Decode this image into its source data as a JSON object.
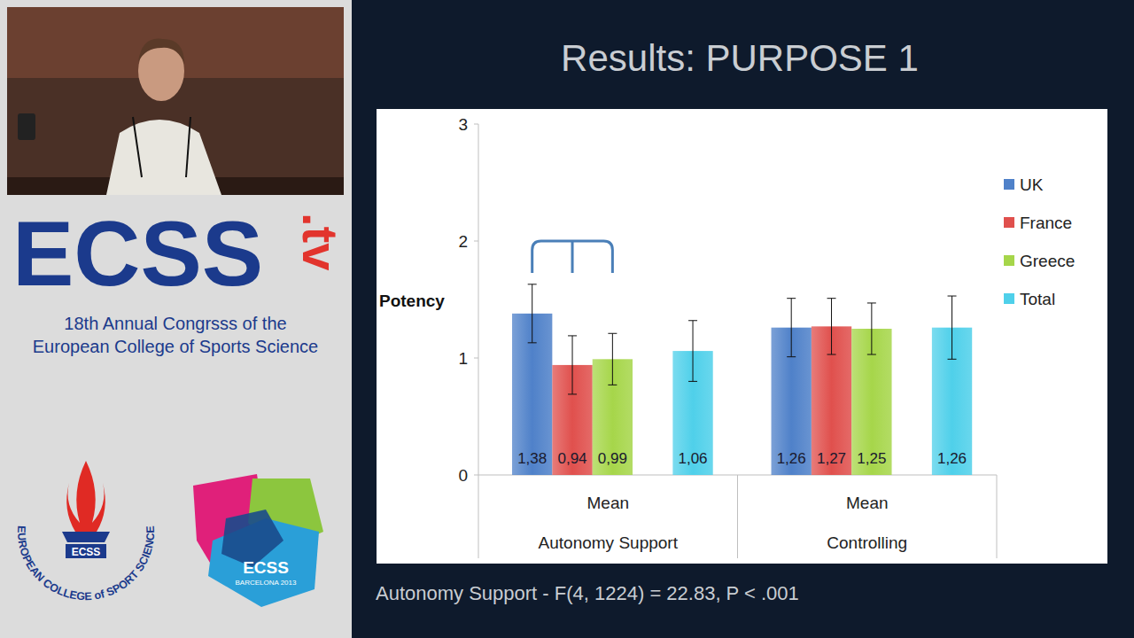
{
  "page": {
    "logo": "ECSS",
    "logo_suffix": ".tv",
    "congress_line1": "18th Annual Congrsss of the",
    "congress_line2": "European College of Sports Science",
    "seal_text": "EUROPEAN COLLEGE of SPORT SCIENCE",
    "seal_name": "ECSS",
    "badge_name": "ECSS",
    "badge_subtitle": "BARCELONA 2013"
  },
  "chart_data": {
    "type": "bar",
    "title": "Results: PURPOSE 1",
    "annotation": "Autonomy Support - F(4, 1224) = 22.83, P < .001",
    "ylabel": "Potency",
    "categories": [
      "Mean",
      "Mean"
    ],
    "groups": [
      "Autonomy Support",
      "Controlling"
    ],
    "series": [
      {
        "name": "UK",
        "color": "#4f81c9",
        "values": [
          1.38,
          1.26
        ],
        "value_labels": [
          "1,38",
          "1,26"
        ],
        "errors": [
          0.25,
          0.25
        ]
      },
      {
        "name": "France",
        "color": "#e0504d",
        "values": [
          0.94,
          1.27
        ],
        "value_labels": [
          "0,94",
          "1,27"
        ],
        "errors": [
          0.25,
          0.24
        ]
      },
      {
        "name": "Greece",
        "color": "#a6d64a",
        "values": [
          0.99,
          1.25
        ],
        "value_labels": [
          "0,99",
          "1,25"
        ],
        "errors": [
          0.22,
          0.22
        ]
      },
      {
        "name": "Total",
        "color": "#4fd0ea",
        "values": [
          1.06,
          1.26
        ],
        "value_labels": [
          "1,06",
          "1,26"
        ],
        "errors": [
          0.26,
          0.27
        ]
      }
    ],
    "ylim": [
      0,
      3
    ],
    "yticks": [
      0,
      1,
      2,
      3
    ],
    "grid": false,
    "legend": "right",
    "data_labels": true
  }
}
